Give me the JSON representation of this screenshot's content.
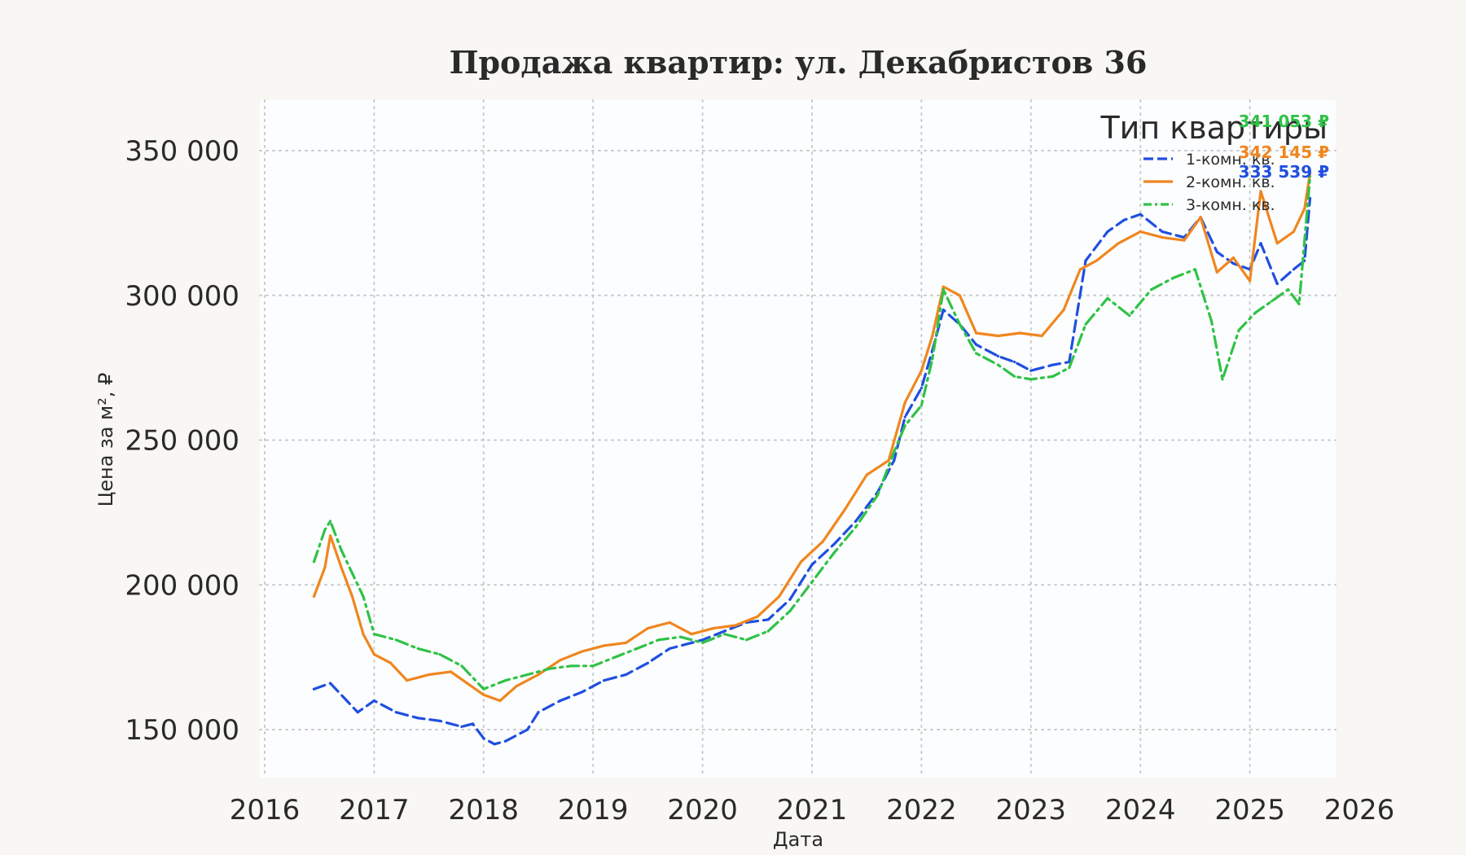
{
  "chart_data": {
    "type": "line",
    "title": "Продажа квартир: ул. Декабристов 36",
    "xlabel": "Дата",
    "ylabel": "Цена за м², ₽",
    "xlim": [
      2016,
      2026
    ],
    "ylim": [
      135000,
      367000
    ],
    "x_ticks": [
      "2016",
      "2017",
      "2018",
      "2019",
      "2020",
      "2021",
      "2022",
      "2023",
      "2024",
      "2025",
      "2026"
    ],
    "y_ticks": [
      {
        "value": 150000,
        "label": "150 000"
      },
      {
        "value": 200000,
        "label": "200 000"
      },
      {
        "value": 250000,
        "label": "250 000"
      },
      {
        "value": 300000,
        "label": "300 000"
      },
      {
        "value": 350000,
        "label": "350 000"
      }
    ],
    "grid": true,
    "legend": {
      "title": "Тип квартиры",
      "placement": "top-right"
    },
    "series": [
      {
        "name": "1-комн. кв.",
        "color": "#1f4fe0",
        "dash": "dashed",
        "end_label": "333 539 ₽",
        "points": [
          [
            2016.45,
            164000
          ],
          [
            2016.6,
            166000
          ],
          [
            2016.75,
            160000
          ],
          [
            2016.85,
            156000
          ],
          [
            2017.0,
            160000
          ],
          [
            2017.2,
            156000
          ],
          [
            2017.4,
            154000
          ],
          [
            2017.6,
            153000
          ],
          [
            2017.8,
            151000
          ],
          [
            2017.9,
            152000
          ],
          [
            2018.0,
            147000
          ],
          [
            2018.1,
            145000
          ],
          [
            2018.2,
            146000
          ],
          [
            2018.4,
            150000
          ],
          [
            2018.5,
            156000
          ],
          [
            2018.7,
            160000
          ],
          [
            2018.9,
            163000
          ],
          [
            2019.1,
            167000
          ],
          [
            2019.3,
            169000
          ],
          [
            2019.5,
            173000
          ],
          [
            2019.7,
            178000
          ],
          [
            2019.9,
            180000
          ],
          [
            2020.0,
            181000
          ],
          [
            2020.2,
            184000
          ],
          [
            2020.4,
            187000
          ],
          [
            2020.6,
            188000
          ],
          [
            2020.8,
            195000
          ],
          [
            2021.0,
            207000
          ],
          [
            2021.2,
            214000
          ],
          [
            2021.4,
            222000
          ],
          [
            2021.6,
            232000
          ],
          [
            2021.75,
            243000
          ],
          [
            2021.85,
            258000
          ],
          [
            2022.0,
            268000
          ],
          [
            2022.1,
            281000
          ],
          [
            2022.2,
            295000
          ],
          [
            2022.35,
            290000
          ],
          [
            2022.5,
            283000
          ],
          [
            2022.7,
            279000
          ],
          [
            2022.85,
            277000
          ],
          [
            2023.0,
            274000
          ],
          [
            2023.2,
            276000
          ],
          [
            2023.35,
            277000
          ],
          [
            2023.5,
            312000
          ],
          [
            2023.7,
            322000
          ],
          [
            2023.85,
            326000
          ],
          [
            2024.0,
            328000
          ],
          [
            2024.2,
            322000
          ],
          [
            2024.4,
            320000
          ],
          [
            2024.55,
            327000
          ],
          [
            2024.7,
            315000
          ],
          [
            2024.85,
            311000
          ],
          [
            2025.0,
            309000
          ],
          [
            2025.1,
            318000
          ],
          [
            2025.25,
            304000
          ],
          [
            2025.4,
            309000
          ],
          [
            2025.5,
            312000
          ],
          [
            2025.55,
            333539
          ]
        ]
      },
      {
        "name": "2-комн. кв.",
        "color": "#f0861f",
        "dash": "solid",
        "end_label": "342 145 ₽",
        "points": [
          [
            2016.45,
            196000
          ],
          [
            2016.55,
            206000
          ],
          [
            2016.6,
            217000
          ],
          [
            2016.7,
            206000
          ],
          [
            2016.8,
            196000
          ],
          [
            2016.9,
            183000
          ],
          [
            2017.0,
            176000
          ],
          [
            2017.15,
            173000
          ],
          [
            2017.3,
            167000
          ],
          [
            2017.5,
            169000
          ],
          [
            2017.7,
            170000
          ],
          [
            2017.85,
            166000
          ],
          [
            2018.0,
            162000
          ],
          [
            2018.15,
            160000
          ],
          [
            2018.3,
            165000
          ],
          [
            2018.5,
            169000
          ],
          [
            2018.7,
            174000
          ],
          [
            2018.9,
            177000
          ],
          [
            2019.1,
            179000
          ],
          [
            2019.3,
            180000
          ],
          [
            2019.5,
            185000
          ],
          [
            2019.7,
            187000
          ],
          [
            2019.9,
            183000
          ],
          [
            2020.1,
            185000
          ],
          [
            2020.3,
            186000
          ],
          [
            2020.5,
            189000
          ],
          [
            2020.7,
            196000
          ],
          [
            2020.9,
            208000
          ],
          [
            2021.1,
            215000
          ],
          [
            2021.3,
            226000
          ],
          [
            2021.5,
            238000
          ],
          [
            2021.7,
            243000
          ],
          [
            2021.85,
            263000
          ],
          [
            2022.0,
            274000
          ],
          [
            2022.1,
            286000
          ],
          [
            2022.2,
            303000
          ],
          [
            2022.35,
            300000
          ],
          [
            2022.5,
            287000
          ],
          [
            2022.7,
            286000
          ],
          [
            2022.9,
            287000
          ],
          [
            2023.1,
            286000
          ],
          [
            2023.3,
            295000
          ],
          [
            2023.45,
            309000
          ],
          [
            2023.6,
            312000
          ],
          [
            2023.8,
            318000
          ],
          [
            2024.0,
            322000
          ],
          [
            2024.2,
            320000
          ],
          [
            2024.4,
            319000
          ],
          [
            2024.55,
            327000
          ],
          [
            2024.7,
            308000
          ],
          [
            2024.85,
            313000
          ],
          [
            2025.0,
            305000
          ],
          [
            2025.1,
            336000
          ],
          [
            2025.25,
            318000
          ],
          [
            2025.4,
            322000
          ],
          [
            2025.5,
            330000
          ],
          [
            2025.55,
            342145
          ]
        ]
      },
      {
        "name": "3-комн. кв.",
        "color": "#2fc247",
        "dash": "dashdot",
        "end_label": "341 053 ₽",
        "points": [
          [
            2016.45,
            208000
          ],
          [
            2016.55,
            219000
          ],
          [
            2016.6,
            222000
          ],
          [
            2016.7,
            212000
          ],
          [
            2016.8,
            204000
          ],
          [
            2016.9,
            196000
          ],
          [
            2017.0,
            183000
          ],
          [
            2017.2,
            181000
          ],
          [
            2017.4,
            178000
          ],
          [
            2017.6,
            176000
          ],
          [
            2017.8,
            172000
          ],
          [
            2018.0,
            164000
          ],
          [
            2018.2,
            167000
          ],
          [
            2018.4,
            169000
          ],
          [
            2018.6,
            171000
          ],
          [
            2018.8,
            172000
          ],
          [
            2019.0,
            172000
          ],
          [
            2019.2,
            175000
          ],
          [
            2019.4,
            178000
          ],
          [
            2019.6,
            181000
          ],
          [
            2019.8,
            182000
          ],
          [
            2020.0,
            180000
          ],
          [
            2020.2,
            183000
          ],
          [
            2020.4,
            181000
          ],
          [
            2020.6,
            184000
          ],
          [
            2020.8,
            191000
          ],
          [
            2021.0,
            201000
          ],
          [
            2021.2,
            211000
          ],
          [
            2021.4,
            220000
          ],
          [
            2021.6,
            231000
          ],
          [
            2021.75,
            246000
          ],
          [
            2021.85,
            255000
          ],
          [
            2022.0,
            262000
          ],
          [
            2022.1,
            278000
          ],
          [
            2022.2,
            302000
          ],
          [
            2022.35,
            290000
          ],
          [
            2022.5,
            280000
          ],
          [
            2022.7,
            276000
          ],
          [
            2022.85,
            272000
          ],
          [
            2023.0,
            271000
          ],
          [
            2023.2,
            272000
          ],
          [
            2023.35,
            275000
          ],
          [
            2023.5,
            290000
          ],
          [
            2023.7,
            299000
          ],
          [
            2023.9,
            293000
          ],
          [
            2024.1,
            302000
          ],
          [
            2024.3,
            306000
          ],
          [
            2024.5,
            309000
          ],
          [
            2024.65,
            291000
          ],
          [
            2024.75,
            271000
          ],
          [
            2024.9,
            288000
          ],
          [
            2025.05,
            294000
          ],
          [
            2025.2,
            298000
          ],
          [
            2025.35,
            302000
          ],
          [
            2025.45,
            297000
          ],
          [
            2025.55,
            341053
          ]
        ]
      }
    ]
  }
}
